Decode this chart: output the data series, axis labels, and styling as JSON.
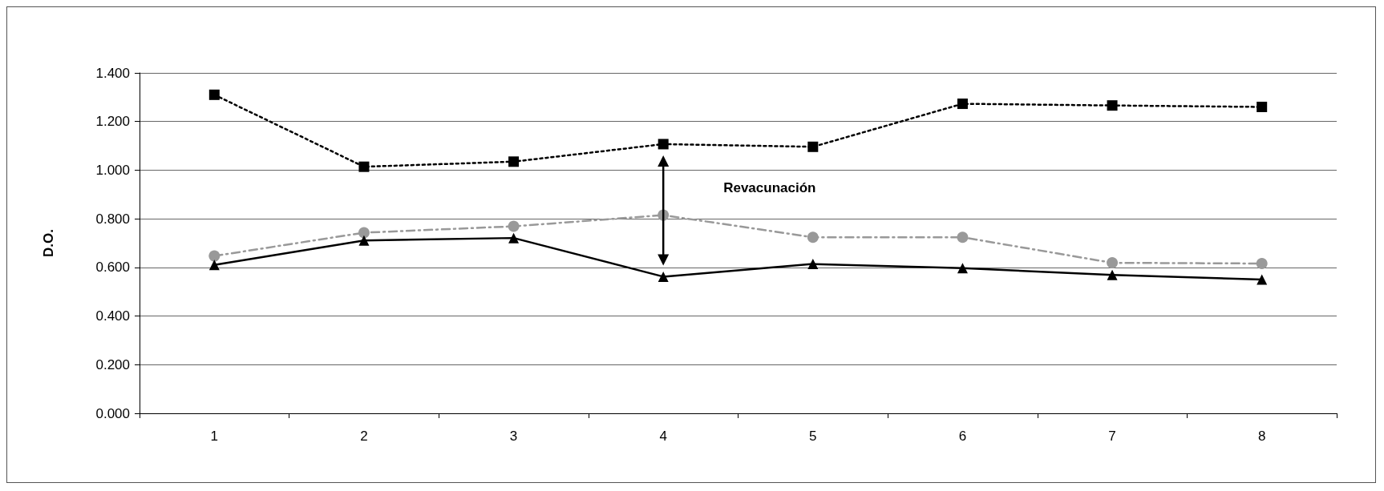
{
  "chart_data": {
    "type": "line",
    "ylabel": "D.O.",
    "categories": [
      "1",
      "2",
      "3",
      "4",
      "5",
      "6",
      "7",
      "8"
    ],
    "series": [
      {
        "color": "#000000",
        "marker": "square",
        "line_style": "dotted",
        "values": [
          1.31,
          1.014,
          1.035,
          1.107,
          1.096,
          1.273,
          1.266,
          1.26
        ]
      },
      {
        "color": "#999999",
        "marker": "circle",
        "line_style": "dashed",
        "values": [
          0.647,
          0.743,
          0.769,
          0.815,
          0.724,
          0.724,
          0.619,
          0.616
        ]
      },
      {
        "color": "#000000",
        "marker": "triangle",
        "line_style": "solid",
        "values": [
          0.61,
          0.711,
          0.721,
          0.562,
          0.614,
          0.597,
          0.569,
          0.55
        ]
      }
    ],
    "ylim": [
      0,
      1.4
    ],
    "yticks": [
      {
        "value": 0,
        "label": "0.000"
      },
      {
        "value": 0.2,
        "label": "0.200"
      },
      {
        "value": 0.4,
        "label": "0.400"
      },
      {
        "value": 0.6,
        "label": "0.600"
      },
      {
        "value": 0.8,
        "label": "0.800"
      },
      {
        "value": 1.0,
        "label": "1.000"
      },
      {
        "value": 1.2,
        "label": "1.200"
      },
      {
        "value": 1.4,
        "label": "1.400"
      }
    ],
    "grid": "y",
    "annotations": [
      "Revacunación"
    ]
  }
}
